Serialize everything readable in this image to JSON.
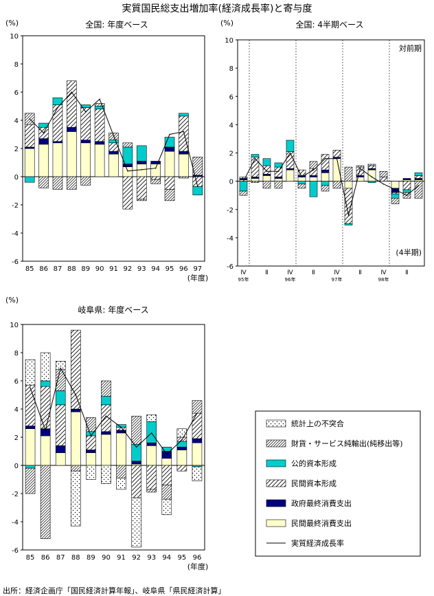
{
  "main_title": "実質国民総支出増加率(経済成長率)と寄与度",
  "source": "出所：経済企画庁「国民経済計算年報」、岐阜県「県民経済計算」",
  "colors": {
    "consumption_private": "#ffffcc",
    "consumption_gov": "#000080",
    "public_capital": "#00cccc",
    "growth_line": "#000000",
    "frame": "#000000"
  },
  "legend": {
    "items": [
      {
        "key": "statdisc",
        "label": "統計上の不突合"
      },
      {
        "key": "netexp",
        "label": "財貨・サービス純輸出(純移出等)"
      },
      {
        "key": "pubcap",
        "label": "公的資本形成"
      },
      {
        "key": "privcap",
        "label": "民間資本形成"
      },
      {
        "key": "govcons",
        "label": "政府最終消費支出"
      },
      {
        "key": "privcons",
        "label": "民間最終消費支出"
      },
      {
        "key": "growth",
        "label": "実質経済成長率"
      }
    ]
  },
  "chart_data": [
    {
      "id": "national_annual",
      "type": "bar",
      "title": "全国: 年度ベース",
      "ylabel": "(%)",
      "xlabel": "(年度)",
      "ylim": [
        -6,
        10
      ],
      "yticks": [
        10,
        8,
        6,
        4,
        2,
        0,
        -2,
        -4,
        -6
      ],
      "categories": [
        "85",
        "86",
        "87",
        "88",
        "89",
        "90",
        "91",
        "92",
        "93",
        "94",
        "95",
        "96",
        "97"
      ],
      "series": [
        {
          "key": "privcons",
          "values": [
            2.0,
            2.3,
            2.4,
            3.2,
            2.4,
            2.3,
            1.6,
            0.7,
            0.9,
            0.9,
            1.8,
            1.6,
            0.0
          ]
        },
        {
          "key": "govcons",
          "values": [
            0.1,
            0.4,
            0.1,
            0.3,
            0.2,
            0.2,
            0.2,
            0.2,
            0.2,
            0.2,
            0.3,
            0.2,
            0.1
          ]
        },
        {
          "key": "privcap",
          "values": [
            1.6,
            0.8,
            2.6,
            3.3,
            2.3,
            2.3,
            0.6,
            -2.3,
            -1.6,
            -0.2,
            -0.9,
            2.5,
            -0.7
          ]
        },
        {
          "key": "pubcap",
          "values": [
            -0.4,
            0.3,
            0.5,
            0.0,
            0.2,
            0.2,
            0.2,
            1.2,
            1.1,
            0.0,
            0.7,
            0.2,
            -0.6
          ]
        },
        {
          "key": "netexp",
          "values": [
            0.8,
            -0.8,
            -0.9,
            -0.9,
            -0.6,
            0.2,
            0.5,
            0.3,
            -0.1,
            -0.3,
            -0.8,
            -0.1,
            1.3
          ]
        }
      ],
      "growth": [
        4.1,
        3.1,
        4.9,
        6.0,
        4.6,
        5.5,
        2.9,
        0.4,
        0.5,
        0.6,
        3.0,
        3.2,
        -0.7
      ]
    },
    {
      "id": "national_quarterly",
      "type": "bar",
      "title": "全国: 4半期ベース",
      "ylabel": "(%)",
      "note_top": "対前期",
      "note_bottom": "(4半期)",
      "ylim": [
        -6,
        10
      ],
      "yticks": [
        10,
        8,
        6,
        4,
        2,
        0,
        -2,
        -4,
        -6
      ],
      "categories": [
        "Ⅳ",
        "Ⅰ",
        "Ⅱ",
        "Ⅲ",
        "Ⅳ",
        "Ⅰ",
        "Ⅱ",
        "Ⅲ",
        "Ⅳ",
        "Ⅰ",
        "Ⅱ",
        "Ⅲ",
        "Ⅳ",
        "Ⅰ",
        "Ⅱ",
        "Ⅲ"
      ],
      "x_tick_labels": [
        "Ⅳ",
        "Ⅱ",
        "Ⅳ",
        "Ⅱ",
        "Ⅳ",
        "Ⅱ",
        "Ⅳ",
        "Ⅱ"
      ],
      "year_labels": [
        "95年",
        "96年",
        "97年",
        "98年"
      ],
      "series": [
        {
          "key": "privcons",
          "values": [
            0.1,
            0.2,
            0.4,
            0.2,
            0.8,
            0.3,
            0.3,
            0.6,
            1.6,
            -0.5,
            0.3,
            0.8,
            0.0,
            -0.5,
            0.1,
            0.1
          ]
        },
        {
          "key": "govcons",
          "values": [
            0.1,
            0.1,
            0.1,
            0.1,
            0.1,
            0.1,
            0.1,
            0.2,
            0.1,
            0.0,
            0.1,
            0.1,
            0.0,
            -0.3,
            0.1,
            0.1
          ]
        },
        {
          "key": "privcap",
          "values": [
            0.1,
            1.4,
            0.6,
            0.7,
            1.2,
            0.4,
            0.5,
            1.1,
            0.5,
            -2.5,
            0.6,
            0.2,
            0.3,
            -0.1,
            -0.6,
            0.2
          ]
        },
        {
          "key": "pubcap",
          "values": [
            -0.7,
            0.2,
            0.5,
            0.3,
            0.8,
            -0.2,
            -1.1,
            -0.3,
            0.0,
            -0.1,
            0.0,
            -0.1,
            0.0,
            -0.3,
            -0.2,
            0.2
          ]
        },
        {
          "key": "netexp",
          "values": [
            -0.3,
            -0.1,
            -0.5,
            -0.5,
            0.0,
            -0.3,
            0.5,
            -0.4,
            -0.5,
            1.0,
            0.1,
            0.1,
            0.4,
            -0.4,
            -0.4,
            -1.2
          ]
        }
      ],
      "growth": [
        0.0,
        1.6,
        0.7,
        0.7,
        2.0,
        0.3,
        0.8,
        1.6,
        1.6,
        -2.4,
        0.9,
        0.3,
        -0.2,
        -0.6,
        -1.0,
        -0.3
      ]
    },
    {
      "id": "gifu_annual",
      "type": "bar",
      "title": "岐阜県: 年度ベース",
      "ylabel": "(%)",
      "xlabel": "(年度)",
      "ylim": [
        -6,
        10
      ],
      "yticks": [
        10,
        8,
        6,
        4,
        2,
        0,
        -2,
        -4,
        -6
      ],
      "categories": [
        "85",
        "86",
        "87",
        "88",
        "89",
        "90",
        "91",
        "92",
        "93",
        "94",
        "95",
        "96"
      ],
      "series": [
        {
          "key": "privcons",
          "values": [
            2.6,
            2.1,
            0.9,
            3.8,
            0.9,
            2.2,
            2.3,
            0.1,
            1.4,
            0.5,
            1.1,
            1.6
          ]
        },
        {
          "key": "govcons",
          "values": [
            0.2,
            0.5,
            0.5,
            0.2,
            0.2,
            0.2,
            0.2,
            0.2,
            0.2,
            0.5,
            0.2,
            0.3
          ]
        },
        {
          "key": "privcap",
          "values": [
            2.9,
            3.0,
            2.9,
            5.6,
            1.0,
            1.9,
            0.2,
            -2.3,
            -1.7,
            -1.4,
            -0.4,
            1.8
          ]
        },
        {
          "key": "pubcap",
          "values": [
            -0.2,
            0.4,
            1.0,
            0.0,
            0.3,
            0.6,
            0.2,
            1.2,
            1.5,
            0.3,
            0.4,
            -0.1
          ]
        },
        {
          "key": "netexp",
          "values": [
            -1.8,
            -5.2,
            1.5,
            -0.4,
            1.0,
            1.1,
            -0.9,
            2.0,
            -0.2,
            -1.0,
            0.3,
            0.9
          ]
        },
        {
          "key": "statdisc",
          "values": [
            1.8,
            2.0,
            0.6,
            -3.9,
            -1.0,
            -1.3,
            -0.8,
            -3.5,
            0.5,
            -1.1,
            0.6,
            -1.0
          ]
        }
      ],
      "growth": [
        5.5,
        2.5,
        6.9,
        5.0,
        2.1,
        3.5,
        2.7,
        1.3,
        2.3,
        0.8,
        1.8,
        3.7
      ]
    }
  ]
}
